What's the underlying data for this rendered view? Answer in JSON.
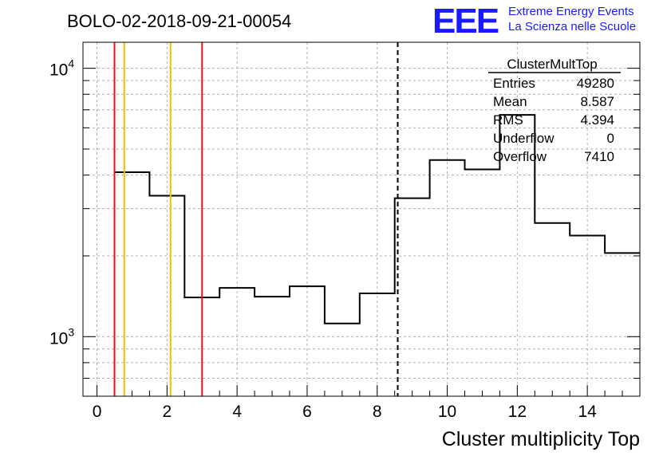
{
  "run_title": "BOLO-02-2018-09-21-00054",
  "logo": {
    "letters": "EEE",
    "line1": "Extreme Energy Events",
    "line2": "La Scienza nelle Scuole",
    "color": "#1a1aff"
  },
  "stats": {
    "title": "ClusterMultTop",
    "rows": [
      {
        "label": "Entries",
        "value": "49280"
      },
      {
        "label": "Mean",
        "value": "8.587"
      },
      {
        "label": "RMS",
        "value": "4.394"
      },
      {
        "label": "Underflow",
        "value": "0"
      },
      {
        "label": "Overflow",
        "value": "7410"
      }
    ]
  },
  "chart_data": {
    "type": "bar",
    "histogram": true,
    "title": "BOLO-02-2018-09-21-00054",
    "xlabel": "Cluster multiplicity Top",
    "ylabel": "",
    "xlim": [
      -0.4,
      15.5
    ],
    "ylim": [
      600,
      12500
    ],
    "yscale": "log",
    "grid": true,
    "x_ticks": [
      0,
      2,
      4,
      6,
      8,
      10,
      12,
      14
    ],
    "y_ticks": [
      {
        "value": 1000,
        "base": "10",
        "exp": "3"
      },
      {
        "value": 10000,
        "base": "10",
        "exp": "4"
      }
    ],
    "bin_edges": [
      0.5,
      1.5,
      2.5,
      3.5,
      4.5,
      5.5,
      6.5,
      7.5,
      8.5,
      9.5,
      10.5,
      11.5,
      12.5,
      13.5,
      14.5,
      15.5
    ],
    "values": [
      4100,
      3350,
      1400,
      1520,
      1410,
      1540,
      1120,
      1450,
      3280,
      4550,
      4200,
      6700,
      2650,
      2380,
      2050
    ],
    "vertical_lines": [
      {
        "x": 0.5,
        "color": "#e8141c",
        "style": "solid"
      },
      {
        "x": 3.0,
        "color": "#e8141c",
        "style": "solid"
      },
      {
        "x": 0.78,
        "color": "#f0c000",
        "style": "solid"
      },
      {
        "x": 2.1,
        "color": "#f0c000",
        "style": "solid"
      },
      {
        "x": 8.587,
        "color": "#000000",
        "style": "dashed"
      }
    ]
  }
}
